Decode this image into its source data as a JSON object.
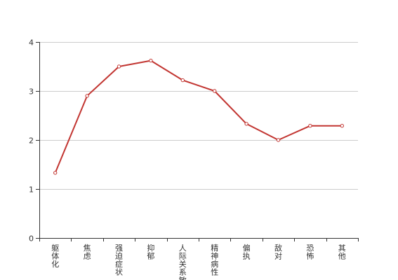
{
  "chart_data": {
    "type": "line",
    "categories": [
      "躯体化",
      "焦虑",
      "强迫症状",
      "抑郁",
      "人际关系敏感",
      "精神病性",
      "偏执",
      "敌对",
      "恐怖",
      "其他"
    ],
    "series": [
      {
        "values": [
          1.33,
          2.9,
          3.5,
          3.62,
          3.22,
          3.0,
          2.33,
          2.0,
          2.29,
          2.29
        ],
        "color": "#c23531"
      }
    ],
    "ylim": [
      0,
      4
    ],
    "yticks": [
      0,
      1,
      2,
      3,
      4
    ],
    "grid": true,
    "category_label_orientation": "vertical"
  }
}
